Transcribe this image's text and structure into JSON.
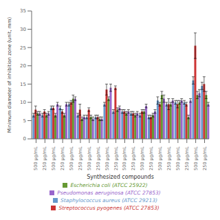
{
  "chart_data": {
    "type": "bar",
    "xlabel": "Synthesized compounds",
    "ylabel": "Minimum diameter of inhibition zone (unit, mm)",
    "categories": [
      "500 µg/mL",
      "250 µg/mL",
      "500 µg/mL",
      "250 µg/mL",
      "500 µg/mL",
      "250 µg/mL",
      "500 µg/mL",
      "250 µg/mL",
      "500 µg/mL",
      "250 µg/mL",
      "500 µg/mL",
      "250 µg/mL",
      "500 µg/mL",
      "250 µg/mL",
      "500 µg/mL",
      "250 µg/mL",
      "500 µg/mL",
      "250 µg/mL",
      "500 µg/mL",
      "250 µg/mL"
    ],
    "series": [
      {
        "name": "Staphylococcus aureus (ATCC 29213)",
        "color": "#6699cc",
        "values": [
          6.5,
          6.5,
          8.5,
          8.5,
          9.5,
          6.5,
          6.0,
          6.0,
          9.5,
          7.5,
          7.5,
          7.0,
          6.5,
          6.0,
          10.5,
          9.5,
          10.0,
          10.0,
          16.0,
          14.5
        ],
        "errors": [
          0.5,
          0.5,
          0.5,
          0.5,
          0.5,
          0.5,
          0.5,
          0.5,
          0.5,
          0.5,
          0.5,
          0.5,
          0.5,
          0.5,
          1.0,
          0.5,
          0.5,
          0.5,
          1.0,
          1.0
        ]
      },
      {
        "name": "Streptococcus pyogenes (ATCC 27853)",
        "color": "#cc3333",
        "values": [
          8.0,
          7.5,
          8.5,
          7.5,
          10.0,
          8.0,
          8.0,
          6.0,
          13.5,
          14.0,
          7.5,
          7.0,
          7.5,
          6.0,
          9.5,
          9.5,
          9.5,
          9.5,
          25.5,
          15.0
        ],
        "errors": [
          1.0,
          0.5,
          0.5,
          0.5,
          0.5,
          1.5,
          0.5,
          0.5,
          1.5,
          0.5,
          0.5,
          0.5,
          0.5,
          0.5,
          0.5,
          1.5,
          1.0,
          0.5,
          3.5,
          2.0
        ]
      },
      {
        "name": "Escherichia coli (ATCC 25922)",
        "color": "#669933",
        "values": [
          7.0,
          6.5,
          6.5,
          6.5,
          11.0,
          5.5,
          6.0,
          5.5,
          11.0,
          8.0,
          7.0,
          6.5,
          7.5,
          6.5,
          12.0,
          9.5,
          10.0,
          6.0,
          12.0,
          12.0
        ],
        "errors": [
          0.5,
          0.5,
          0.5,
          0.5,
          1.0,
          0.5,
          0.5,
          0.5,
          0.5,
          0.5,
          0.5,
          0.5,
          0.5,
          0.5,
          1.0,
          0.5,
          0.5,
          0.5,
          1.0,
          1.0
        ]
      },
      {
        "name": "Pseudomonas aeruginosa (ATCC 27853)",
        "color": "#9966cc",
        "values": [
          7.0,
          7.0,
          9.5,
          9.5,
          11.0,
          6.0,
          5.5,
          5.5,
          14.0,
          8.5,
          7.5,
          7.0,
          9.0,
          7.5,
          11.0,
          10.5,
          10.5,
          10.5,
          12.5,
          9.5
        ],
        "errors": [
          0.5,
          0.5,
          0.5,
          0.5,
          0.5,
          0.5,
          0.5,
          0.5,
          1.0,
          0.5,
          0.5,
          0.5,
          0.5,
          0.5,
          1.0,
          0.5,
          0.5,
          0.5,
          1.0,
          0.5
        ]
      }
    ],
    "ylim": [
      0,
      35
    ],
    "yticks": [
      0,
      5,
      10,
      15,
      20,
      25,
      30,
      35
    ],
    "grid": false,
    "legend": "bottom"
  }
}
